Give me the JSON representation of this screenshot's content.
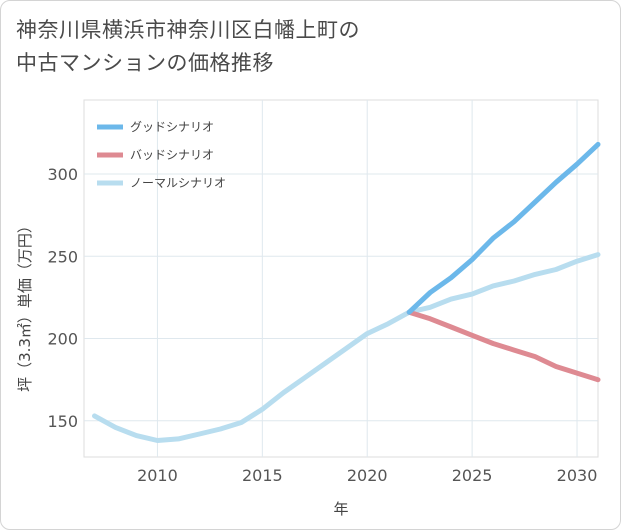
{
  "title_line1": "神奈川県横浜市神奈川区白幡上町の",
  "title_line2": "中古マンションの価格推移",
  "chart_data": {
    "type": "line",
    "xlabel": "年",
    "ylabel": "坪（3.3㎡）単価（万円）",
    "xlim": [
      2006.5,
      2031
    ],
    "ylim": [
      128,
      345
    ],
    "x_ticks": [
      2010,
      2015,
      2020,
      2025,
      2030
    ],
    "y_ticks": [
      150,
      200,
      250,
      300
    ],
    "grid": true,
    "legend_position": "top-left",
    "series": [
      {
        "name": "グッドシナリオ",
        "color": "#6cb8ea",
        "x": [
          2022,
          2023,
          2024,
          2025,
          2026,
          2027,
          2028,
          2029,
          2030,
          2031
        ],
        "values": [
          216,
          228,
          237,
          248,
          261,
          271,
          283,
          295,
          306,
          318
        ]
      },
      {
        "name": "バッドシナリオ",
        "color": "#de8a92",
        "x": [
          2022,
          2023,
          2024,
          2025,
          2026,
          2027,
          2028,
          2029,
          2030,
          2031
        ],
        "values": [
          216,
          212,
          207,
          202,
          197,
          193,
          189,
          183,
          179,
          175
        ]
      },
      {
        "name": "ノーマルシナリオ",
        "color": "#b8ddef",
        "x": [
          2007,
          2008,
          2009,
          2010,
          2011,
          2012,
          2013,
          2014,
          2015,
          2016,
          2017,
          2018,
          2019,
          2020,
          2021,
          2022,
          2023,
          2024,
          2025,
          2026,
          2027,
          2028,
          2029,
          2030,
          2031
        ],
        "values": [
          153,
          146,
          141,
          138,
          139,
          142,
          145,
          149,
          157,
          167,
          176,
          185,
          194,
          203,
          209,
          216,
          219,
          224,
          227,
          232,
          235,
          239,
          242,
          247,
          251
        ]
      }
    ]
  }
}
